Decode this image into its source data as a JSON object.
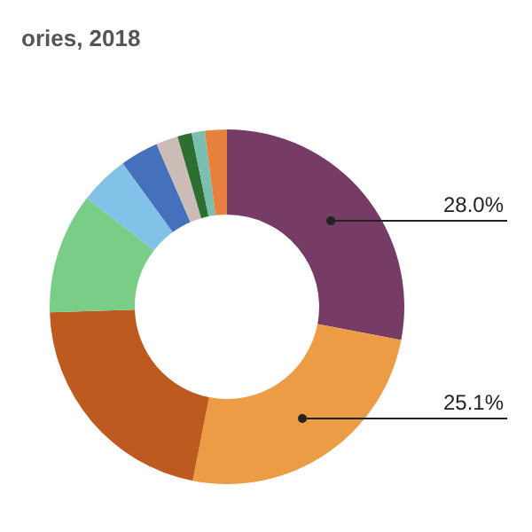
{
  "chart_data": {
    "type": "donut",
    "title": "ories, 2018",
    "categories": [
      null,
      null,
      null,
      null,
      null,
      null,
      null,
      null,
      null,
      null
    ],
    "values": [
      28.0,
      25.1,
      21.4,
      11,
      4.5,
      3.5,
      2,
      1.3,
      1.2,
      2
    ],
    "colors": [
      "#763c66",
      "#eb9c45",
      "#bc5a20",
      "#79cd87",
      "#82c1e8",
      "#4470bc",
      "#cbbcb8",
      "#2e6e30",
      "#79c0b1",
      "#e8803f"
    ],
    "value_labels": [
      "28.0%",
      "25.1%",
      null,
      null,
      null,
      null,
      null,
      null,
      null,
      null
    ]
  }
}
